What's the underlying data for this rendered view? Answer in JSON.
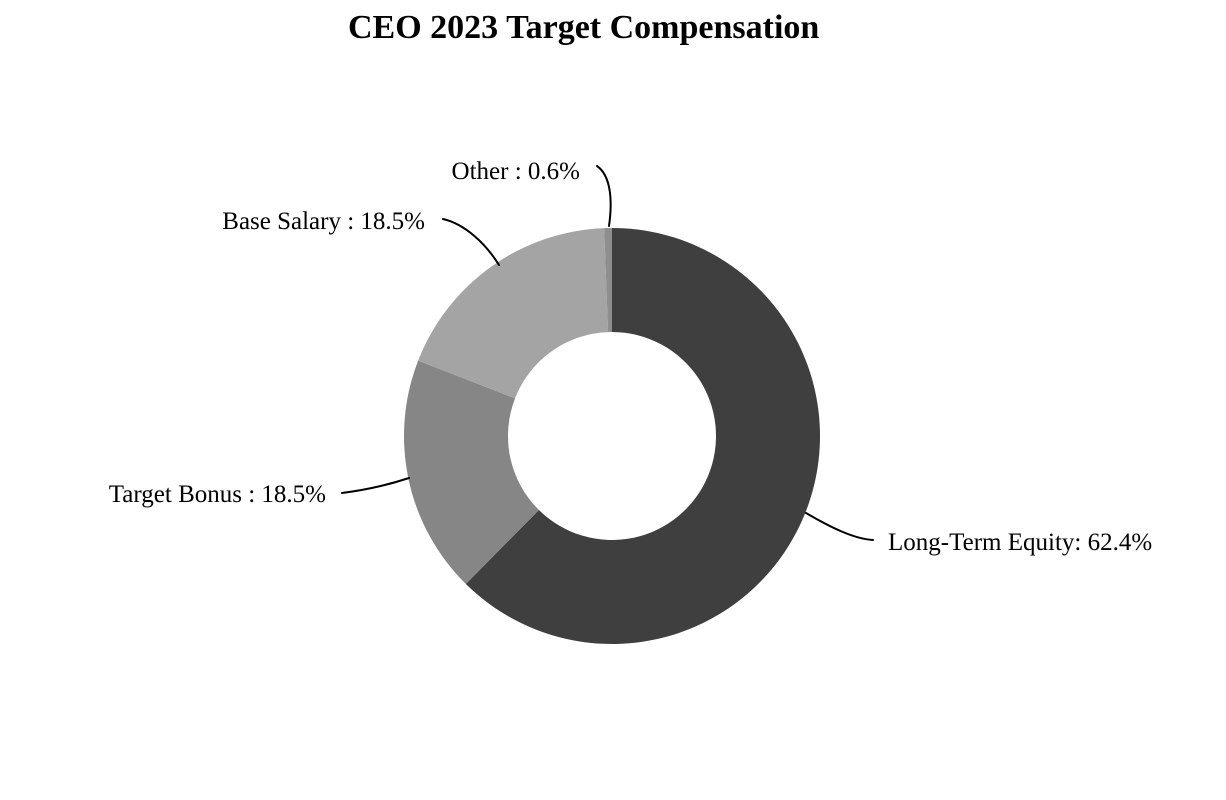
{
  "page": {
    "background": "#ffffff",
    "text_color": "#000000"
  },
  "chart_data": {
    "type": "pie",
    "variant": "donut",
    "title": "CEO 2023 Target Compensation",
    "unit": "%",
    "start_angle_deg": 0,
    "direction": "clockwise",
    "hole_ratio": 0.5,
    "legend": "none",
    "label_style": "outside-with-curved-leader-lines",
    "leader_line_color": "#000000",
    "slices": [
      {
        "key": "long-term-equity",
        "label": "Long-Term Equity",
        "value": 62.4,
        "display": "Long-Term Equity: 62.4%",
        "color": "#3f3f3f"
      },
      {
        "key": "target-bonus",
        "label": "Target Bonus",
        "value": 18.5,
        "display": "Target Bonus : 18.5%",
        "color": "#868686"
      },
      {
        "key": "base-salary",
        "label": "Base Salary",
        "value": 18.5,
        "display": "Base Salary : 18.5%",
        "color": "#a4a4a4"
      },
      {
        "key": "other",
        "label": "Other",
        "value": 0.6,
        "display": "Other : 0.6%",
        "color": "#8e8e8e"
      }
    ]
  }
}
